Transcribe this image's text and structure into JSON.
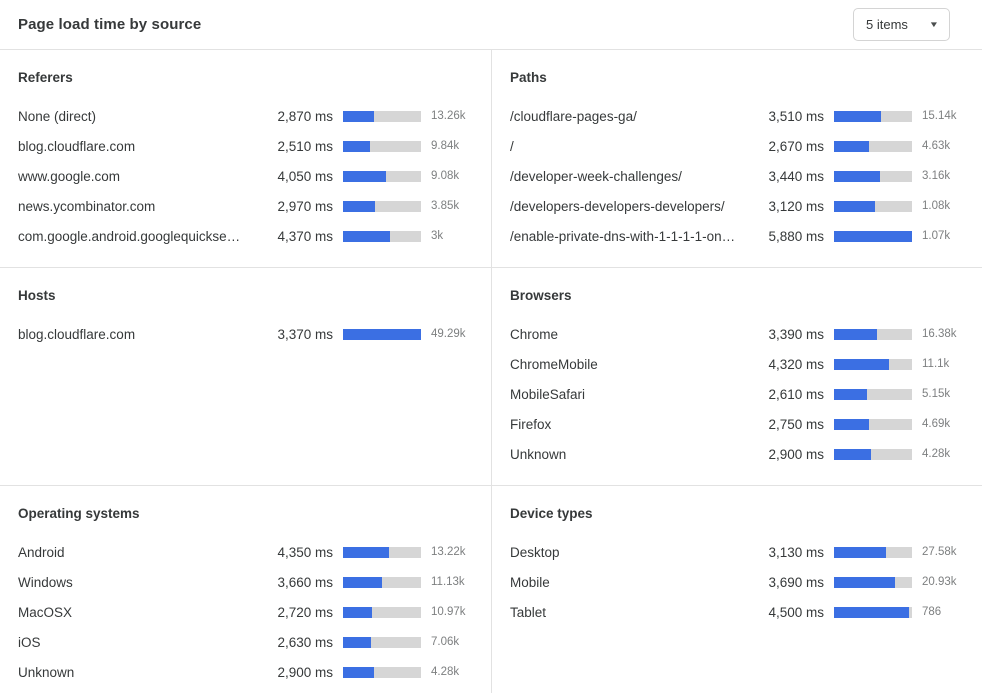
{
  "header": {
    "title": "Page load time by source",
    "dropdown_value": "5 items"
  },
  "colors": {
    "bar_fill": "#3b6fe3",
    "bar_track": "#d6d6d6",
    "divider": "#e2e2e2",
    "count_text": "#7d7f80"
  },
  "chart_data": [
    {
      "type": "bar",
      "title": "Referers",
      "unit": "ms",
      "scale_max_ms": 7300,
      "rows": [
        {
          "label": "None (direct)",
          "time_ms": 2870,
          "time_display": "2,870 ms",
          "count": "13.26k"
        },
        {
          "label": "blog.cloudflare.com",
          "time_ms": 2510,
          "time_display": "2,510 ms",
          "count": "9.84k"
        },
        {
          "label": "www.google.com",
          "time_ms": 4050,
          "time_display": "4,050 ms",
          "count": "9.08k"
        },
        {
          "label": "news.ycombinator.com",
          "time_ms": 2970,
          "time_display": "2,970 ms",
          "count": "3.85k"
        },
        {
          "label": "com.google.android.googlequicksearc…",
          "time_ms": 4370,
          "time_display": "4,370 ms",
          "count": "3k"
        }
      ]
    },
    {
      "type": "bar",
      "title": "Paths",
      "unit": "ms",
      "scale_max_ms": 5880,
      "rows": [
        {
          "label": "/cloudflare-pages-ga/",
          "time_ms": 3510,
          "time_display": "3,510 ms",
          "count": "15.14k"
        },
        {
          "label": "/",
          "time_ms": 2670,
          "time_display": "2,670 ms",
          "count": "4.63k"
        },
        {
          "label": "/developer-week-challenges/",
          "time_ms": 3440,
          "time_display": "3,440 ms",
          "count": "3.16k"
        },
        {
          "label": "/developers-developers-developers/",
          "time_ms": 3120,
          "time_display": "3,120 ms",
          "count": "1.08k"
        },
        {
          "label": "/enable-private-dns-with-1-1-1-1-on-…",
          "time_ms": 5880,
          "time_display": "5,880 ms",
          "count": "1.07k"
        }
      ]
    },
    {
      "type": "bar",
      "title": "Hosts",
      "unit": "ms",
      "scale_max_ms": 3370,
      "rows": [
        {
          "label": "blog.cloudflare.com",
          "time_ms": 3370,
          "time_display": "3,370 ms",
          "count": "49.29k"
        }
      ]
    },
    {
      "type": "bar",
      "title": "Browsers",
      "unit": "ms",
      "scale_max_ms": 6100,
      "rows": [
        {
          "label": "Chrome",
          "time_ms": 3390,
          "time_display": "3,390 ms",
          "count": "16.38k"
        },
        {
          "label": "ChromeMobile",
          "time_ms": 4320,
          "time_display": "4,320 ms",
          "count": "11.1k"
        },
        {
          "label": "MobileSafari",
          "time_ms": 2610,
          "time_display": "2,610 ms",
          "count": "5.15k"
        },
        {
          "label": "Firefox",
          "time_ms": 2750,
          "time_display": "2,750 ms",
          "count": "4.69k"
        },
        {
          "label": "Unknown",
          "time_ms": 2900,
          "time_display": "2,900 ms",
          "count": "4.28k"
        }
      ]
    },
    {
      "type": "bar",
      "title": "Operating systems",
      "unit": "ms",
      "scale_max_ms": 7400,
      "rows": [
        {
          "label": "Android",
          "time_ms": 4350,
          "time_display": "4,350 ms",
          "count": "13.22k"
        },
        {
          "label": "Windows",
          "time_ms": 3660,
          "time_display": "3,660 ms",
          "count": "11.13k"
        },
        {
          "label": "MacOSX",
          "time_ms": 2720,
          "time_display": "2,720 ms",
          "count": "10.97k"
        },
        {
          "label": "iOS",
          "time_ms": 2630,
          "time_display": "2,630 ms",
          "count": "7.06k"
        },
        {
          "label": "Unknown",
          "time_ms": 2900,
          "time_display": "2,900 ms",
          "count": "4.28k"
        }
      ]
    },
    {
      "type": "bar",
      "title": "Device types",
      "unit": "ms",
      "scale_max_ms": 4700,
      "rows": [
        {
          "label": "Desktop",
          "time_ms": 3130,
          "time_display": "3,130 ms",
          "count": "27.58k"
        },
        {
          "label": "Mobile",
          "time_ms": 3690,
          "time_display": "3,690 ms",
          "count": "20.93k"
        },
        {
          "label": "Tablet",
          "time_ms": 4500,
          "time_display": "4,500 ms",
          "count": "786"
        }
      ]
    }
  ]
}
